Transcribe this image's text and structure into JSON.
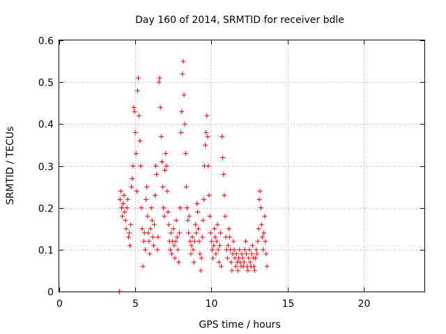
{
  "chart_data": {
    "type": "scatter",
    "title": "Day 160 of 2014, SRMTID for receiver bdle",
    "xlabel": "GPS time / hours",
    "ylabel": "SRMTID / TECUs",
    "xlim": [
      0,
      24
    ],
    "ylim": [
      0,
      0.6
    ],
    "xticks": [
      "0",
      "5",
      "10",
      "15",
      "20"
    ],
    "yticks": [
      "0",
      "0.1",
      "0.2",
      "0.3",
      "0.4",
      "0.5",
      "0.6"
    ],
    "grid": true,
    "marker": "+",
    "color": "#ff0000",
    "series": [
      {
        "name": "SRMTID",
        "points": [
          [
            3.95,
            0.0
          ],
          [
            3.97,
            0.0
          ],
          [
            4.0,
            0.22
          ],
          [
            4.05,
            0.24
          ],
          [
            4.1,
            0.2
          ],
          [
            4.15,
            0.18
          ],
          [
            4.2,
            0.21
          ],
          [
            4.25,
            0.23
          ],
          [
            4.3,
            0.19
          ],
          [
            4.35,
            0.17
          ],
          [
            4.4,
            0.15
          ],
          [
            4.45,
            0.2
          ],
          [
            4.5,
            0.22
          ],
          [
            4.55,
            0.13
          ],
          [
            4.6,
            0.14
          ],
          [
            4.65,
            0.11
          ],
          [
            4.7,
            0.16
          ],
          [
            4.75,
            0.25
          ],
          [
            4.8,
            0.27
          ],
          [
            4.85,
            0.3
          ],
          [
            4.9,
            0.44
          ],
          [
            4.95,
            0.43
          ],
          [
            5.0,
            0.38
          ],
          [
            5.05,
            0.33
          ],
          [
            5.1,
            0.24
          ],
          [
            5.15,
            0.48
          ],
          [
            5.2,
            0.51
          ],
          [
            5.25,
            0.42
          ],
          [
            5.3,
            0.36
          ],
          [
            5.35,
            0.3
          ],
          [
            5.4,
            0.2
          ],
          [
            5.45,
            0.15
          ],
          [
            5.5,
            0.06
          ],
          [
            5.55,
            0.12
          ],
          [
            5.6,
            0.14
          ],
          [
            5.65,
            0.1
          ],
          [
            5.7,
            0.22
          ],
          [
            5.75,
            0.25
          ],
          [
            5.8,
            0.18
          ],
          [
            5.85,
            0.14
          ],
          [
            5.9,
            0.12
          ],
          [
            5.95,
            0.09
          ],
          [
            6.0,
            0.15
          ],
          [
            6.05,
            0.2
          ],
          [
            6.1,
            0.17
          ],
          [
            6.15,
            0.13
          ],
          [
            6.2,
            0.11
          ],
          [
            6.25,
            0.16
          ],
          [
            6.3,
            0.23
          ],
          [
            6.35,
            0.3
          ],
          [
            6.4,
            0.28
          ],
          [
            6.45,
            0.1
          ],
          [
            6.5,
            0.13
          ],
          [
            6.55,
            0.5
          ],
          [
            6.6,
            0.51
          ],
          [
            6.65,
            0.44
          ],
          [
            6.7,
            0.37
          ],
          [
            6.75,
            0.31
          ],
          [
            6.8,
            0.25
          ],
          [
            6.85,
            0.2
          ],
          [
            6.9,
            0.18
          ],
          [
            6.95,
            0.29
          ],
          [
            7.0,
            0.33
          ],
          [
            7.05,
            0.3
          ],
          [
            7.1,
            0.24
          ],
          [
            7.15,
            0.19
          ],
          [
            7.2,
            0.16
          ],
          [
            7.25,
            0.12
          ],
          [
            7.3,
            0.1
          ],
          [
            7.35,
            0.14
          ],
          [
            7.4,
            0.09
          ],
          [
            7.45,
            0.12
          ],
          [
            7.5,
            0.15
          ],
          [
            7.55,
            0.11
          ],
          [
            7.6,
            0.08
          ],
          [
            7.65,
            0.12
          ],
          [
            7.7,
            0.17
          ],
          [
            7.75,
            0.13
          ],
          [
            7.8,
            0.1
          ],
          [
            7.85,
            0.07
          ],
          [
            7.9,
            0.14
          ],
          [
            7.95,
            0.2
          ],
          [
            8.0,
            0.38
          ],
          [
            8.05,
            0.43
          ],
          [
            8.1,
            0.52
          ],
          [
            8.15,
            0.55
          ],
          [
            8.2,
            0.47
          ],
          [
            8.25,
            0.4
          ],
          [
            8.3,
            0.33
          ],
          [
            8.35,
            0.25
          ],
          [
            8.4,
            0.2
          ],
          [
            8.45,
            0.17
          ],
          [
            8.5,
            0.14
          ],
          [
            8.55,
            0.18
          ],
          [
            8.6,
            0.12
          ],
          [
            8.65,
            0.09
          ],
          [
            8.7,
            0.11
          ],
          [
            8.75,
            0.13
          ],
          [
            8.8,
            0.1
          ],
          [
            8.85,
            0.07
          ],
          [
            8.9,
            0.12
          ],
          [
            8.95,
            0.16
          ],
          [
            9.0,
            0.14
          ],
          [
            9.05,
            0.21
          ],
          [
            9.1,
            0.19
          ],
          [
            9.15,
            0.15
          ],
          [
            9.2,
            0.12
          ],
          [
            9.25,
            0.09
          ],
          [
            9.3,
            0.05
          ],
          [
            9.35,
            0.08
          ],
          [
            9.4,
            0.13
          ],
          [
            9.45,
            0.17
          ],
          [
            9.5,
            0.22
          ],
          [
            9.55,
            0.3
          ],
          [
            9.6,
            0.35
          ],
          [
            9.65,
            0.38
          ],
          [
            9.7,
            0.42
          ],
          [
            9.75,
            0.37
          ],
          [
            9.8,
            0.3
          ],
          [
            9.85,
            0.23
          ],
          [
            9.9,
            0.18
          ],
          [
            9.95,
            0.14
          ],
          [
            10.0,
            0.12
          ],
          [
            10.05,
            0.1
          ],
          [
            10.1,
            0.08
          ],
          [
            10.15,
            0.11
          ],
          [
            10.2,
            0.15
          ],
          [
            10.25,
            0.13
          ],
          [
            10.3,
            0.09
          ],
          [
            10.35,
            0.12
          ],
          [
            10.4,
            0.16
          ],
          [
            10.45,
            0.1
          ],
          [
            10.5,
            0.07
          ],
          [
            10.55,
            0.11
          ],
          [
            10.6,
            0.14
          ],
          [
            10.65,
            0.06
          ],
          [
            10.7,
            0.37
          ],
          [
            10.75,
            0.32
          ],
          [
            10.8,
            0.28
          ],
          [
            10.85,
            0.23
          ],
          [
            10.9,
            0.18
          ],
          [
            10.95,
            0.13
          ],
          [
            11.0,
            0.1
          ],
          [
            11.05,
            0.08
          ],
          [
            11.1,
            0.11
          ],
          [
            11.15,
            0.15
          ],
          [
            11.2,
            0.13
          ],
          [
            11.25,
            0.1
          ],
          [
            11.3,
            0.07
          ],
          [
            11.35,
            0.05
          ],
          [
            11.4,
            0.09
          ],
          [
            11.45,
            0.12
          ],
          [
            11.5,
            0.1
          ],
          [
            11.55,
            0.08
          ],
          [
            11.6,
            0.06
          ],
          [
            11.65,
            0.09
          ],
          [
            11.7,
            0.07
          ],
          [
            11.75,
            0.05
          ],
          [
            11.8,
            0.08
          ],
          [
            11.85,
            0.1
          ],
          [
            11.9,
            0.07
          ],
          [
            11.95,
            0.06
          ],
          [
            12.0,
            0.09
          ],
          [
            12.05,
            0.08
          ],
          [
            12.1,
            0.06
          ],
          [
            12.15,
            0.07
          ],
          [
            12.2,
            0.1
          ],
          [
            12.25,
            0.12
          ],
          [
            12.3,
            0.09
          ],
          [
            12.35,
            0.06
          ],
          [
            12.4,
            0.05
          ],
          [
            12.45,
            0.08
          ],
          [
            12.5,
            0.1
          ],
          [
            12.55,
            0.07
          ],
          [
            12.6,
            0.06
          ],
          [
            12.65,
            0.09
          ],
          [
            12.7,
            0.11
          ],
          [
            12.75,
            0.08
          ],
          [
            12.8,
            0.06
          ],
          [
            12.85,
            0.05
          ],
          [
            12.9,
            0.08
          ],
          [
            12.95,
            0.1
          ],
          [
            13.0,
            0.09
          ],
          [
            13.05,
            0.12
          ],
          [
            13.1,
            0.15
          ],
          [
            13.15,
            0.22
          ],
          [
            13.2,
            0.24
          ],
          [
            13.25,
            0.2
          ],
          [
            13.3,
            0.16
          ],
          [
            13.35,
            0.13
          ],
          [
            13.4,
            0.1
          ],
          [
            13.45,
            0.14
          ],
          [
            13.5,
            0.18
          ],
          [
            13.55,
            0.12
          ],
          [
            13.6,
            0.09
          ],
          [
            13.65,
            0.06
          ]
        ]
      }
    ]
  }
}
